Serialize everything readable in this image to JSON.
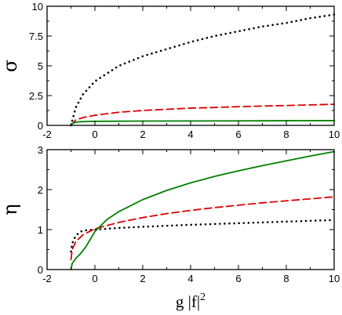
{
  "chart_data": [
    {
      "type": "line",
      "ylabel": "σ",
      "xlabel": "",
      "xlim": [
        -2,
        10
      ],
      "ylim": [
        0,
        10
      ],
      "xticks": [
        -2,
        0,
        2,
        4,
        6,
        8,
        10
      ],
      "yticks": [
        0,
        2.5,
        5,
        7.5,
        10
      ],
      "ytick_labels": [
        "0",
        "2.5",
        "5",
        "7.5",
        "10"
      ],
      "show_xtick_labels": true,
      "series": [
        {
          "style": "dotted",
          "color": "#000000",
          "x": [
            -1.0,
            -0.8,
            -0.5,
            0,
            1,
            2,
            3,
            4,
            5,
            6,
            7,
            8,
            9,
            10
          ],
          "y": [
            0.0,
            1.5,
            2.6,
            3.7,
            5.0,
            5.8,
            6.4,
            7.0,
            7.5,
            7.9,
            8.3,
            8.6,
            9.0,
            9.3
          ]
        },
        {
          "style": "dashed",
          "color": "#dd0000",
          "x": [
            -1.0,
            -0.8,
            -0.5,
            0,
            1,
            2,
            3,
            4,
            5,
            6,
            7,
            8,
            9,
            10
          ],
          "y": [
            0.0,
            0.45,
            0.65,
            0.85,
            1.1,
            1.25,
            1.35,
            1.45,
            1.5,
            1.57,
            1.62,
            1.67,
            1.72,
            1.77
          ]
        },
        {
          "style": "solid",
          "color": "#008000",
          "x": [
            -1.0,
            -0.9,
            -0.7,
            -0.3,
            0,
            2,
            4,
            6,
            8,
            10
          ],
          "y": [
            0.0,
            0.2,
            0.3,
            0.33,
            0.34,
            0.36,
            0.37,
            0.38,
            0.39,
            0.4
          ]
        }
      ]
    },
    {
      "type": "line",
      "ylabel": "η",
      "xlabel": "g |f|",
      "xlabel_sup": "2",
      "xlim": [
        -2,
        10
      ],
      "ylim": [
        0,
        3
      ],
      "xticks": [
        -2,
        0,
        2,
        4,
        6,
        8,
        10
      ],
      "yticks": [
        0,
        1,
        2,
        3
      ],
      "ytick_labels": [
        "0",
        "1",
        "2",
        "3"
      ],
      "show_xtick_labels": true,
      "series": [
        {
          "style": "dotted",
          "color": "#000000",
          "x": [
            -1.0,
            -0.95,
            -0.8,
            -0.6,
            -0.4,
            0,
            1,
            2,
            4,
            6,
            8,
            10
          ],
          "y": [
            0.45,
            0.65,
            0.85,
            0.95,
            0.98,
            1.0,
            1.04,
            1.07,
            1.12,
            1.16,
            1.2,
            1.24
          ]
        },
        {
          "style": "dashed",
          "color": "#dd0000",
          "x": [
            -1.0,
            -0.95,
            -0.8,
            -0.5,
            0,
            1,
            2,
            3,
            4,
            5,
            6,
            7,
            8,
            9,
            10
          ],
          "y": [
            0.25,
            0.5,
            0.7,
            0.87,
            1.02,
            1.18,
            1.3,
            1.4,
            1.48,
            1.55,
            1.61,
            1.67,
            1.72,
            1.77,
            1.82
          ]
        },
        {
          "style": "solid",
          "color": "#008000",
          "x": [
            -1.0,
            -0.95,
            -0.8,
            -0.6,
            -0.4,
            -0.2,
            0,
            0.5,
            1,
            2,
            3,
            4,
            5,
            6,
            7,
            8,
            9,
            10
          ],
          "y": [
            0.0,
            0.15,
            0.28,
            0.4,
            0.55,
            0.75,
            0.95,
            1.25,
            1.45,
            1.75,
            1.98,
            2.17,
            2.33,
            2.47,
            2.6,
            2.72,
            2.84,
            2.95
          ]
        }
      ]
    }
  ]
}
